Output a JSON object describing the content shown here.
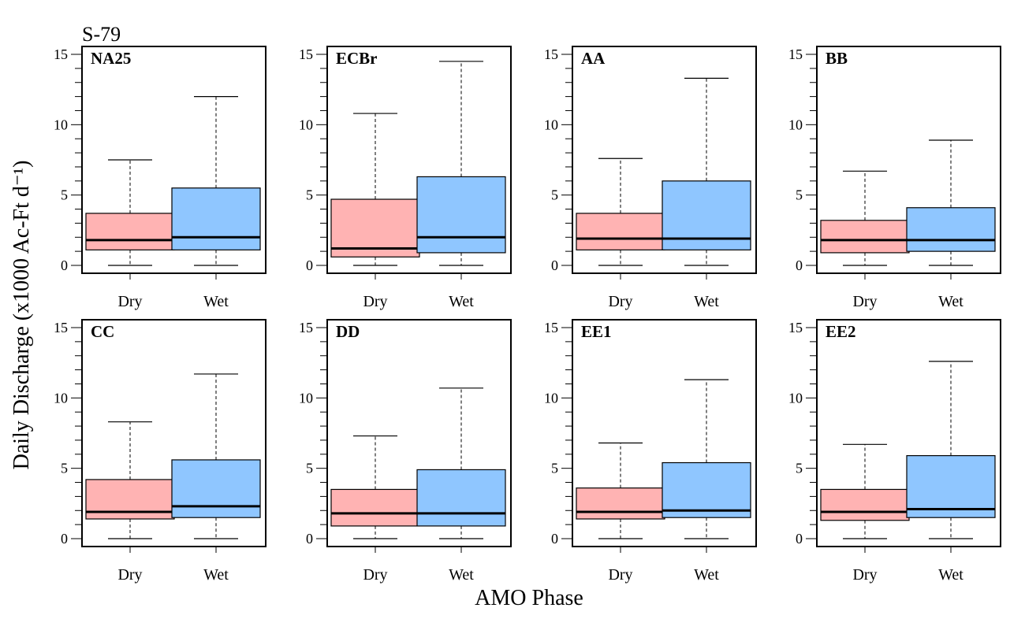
{
  "figure": {
    "site_label": "S-79",
    "ylabel": "Daily Discharge (x1000 Ac-Ft d⁻¹)",
    "xlabel": "AMO Phase",
    "colors": {
      "dry": "#ffb3b3",
      "wet": "#8fc6ff",
      "frame": "#000000"
    }
  },
  "chart_data": [
    {
      "type": "box",
      "title": "NA25",
      "categories": [
        "Dry",
        "Wet"
      ],
      "ylim": [
        0,
        15
      ],
      "yticks": [
        0,
        5,
        10,
        15
      ],
      "boxes": [
        {
          "name": "Dry",
          "whisker_low": 0,
          "q1": 1.1,
          "median": 1.8,
          "q3": 3.7,
          "whisker_high": 7.5
        },
        {
          "name": "Wet",
          "whisker_low": 0,
          "q1": 1.1,
          "median": 2.0,
          "q3": 5.5,
          "whisker_high": 12.0
        }
      ]
    },
    {
      "type": "box",
      "title": "ECBr",
      "categories": [
        "Dry",
        "Wet"
      ],
      "ylim": [
        0,
        15
      ],
      "yticks": [
        0,
        5,
        10,
        15
      ],
      "boxes": [
        {
          "name": "Dry",
          "whisker_low": 0,
          "q1": 0.6,
          "median": 1.2,
          "q3": 4.7,
          "whisker_high": 10.8
        },
        {
          "name": "Wet",
          "whisker_low": 0,
          "q1": 0.9,
          "median": 2.0,
          "q3": 6.3,
          "whisker_high": 14.5
        }
      ]
    },
    {
      "type": "box",
      "title": "AA",
      "categories": [
        "Dry",
        "Wet"
      ],
      "ylim": [
        0,
        15
      ],
      "yticks": [
        0,
        5,
        10,
        15
      ],
      "boxes": [
        {
          "name": "Dry",
          "whisker_low": 0,
          "q1": 1.1,
          "median": 1.9,
          "q3": 3.7,
          "whisker_high": 7.6
        },
        {
          "name": "Wet",
          "whisker_low": 0,
          "q1": 1.1,
          "median": 1.9,
          "q3": 6.0,
          "whisker_high": 13.3
        }
      ]
    },
    {
      "type": "box",
      "title": "BB",
      "categories": [
        "Dry",
        "Wet"
      ],
      "ylim": [
        0,
        15
      ],
      "yticks": [
        0,
        5,
        10,
        15
      ],
      "boxes": [
        {
          "name": "Dry",
          "whisker_low": 0,
          "q1": 0.9,
          "median": 1.8,
          "q3": 3.2,
          "whisker_high": 6.7
        },
        {
          "name": "Wet",
          "whisker_low": 0,
          "q1": 1.0,
          "median": 1.8,
          "q3": 4.1,
          "whisker_high": 8.9
        }
      ]
    },
    {
      "type": "box",
      "title": "CC",
      "categories": [
        "Dry",
        "Wet"
      ],
      "ylim": [
        0,
        15
      ],
      "yticks": [
        0,
        5,
        10,
        15
      ],
      "boxes": [
        {
          "name": "Dry",
          "whisker_low": 0,
          "q1": 1.4,
          "median": 1.9,
          "q3": 4.2,
          "whisker_high": 8.3
        },
        {
          "name": "Wet",
          "whisker_low": 0,
          "q1": 1.5,
          "median": 2.3,
          "q3": 5.6,
          "whisker_high": 11.7
        }
      ]
    },
    {
      "type": "box",
      "title": "DD",
      "categories": [
        "Dry",
        "Wet"
      ],
      "ylim": [
        0,
        15
      ],
      "yticks": [
        0,
        5,
        10,
        15
      ],
      "boxes": [
        {
          "name": "Dry",
          "whisker_low": 0,
          "q1": 0.9,
          "median": 1.8,
          "q3": 3.5,
          "whisker_high": 7.3
        },
        {
          "name": "Wet",
          "whisker_low": 0,
          "q1": 0.9,
          "median": 1.8,
          "q3": 4.9,
          "whisker_high": 10.7
        }
      ]
    },
    {
      "type": "box",
      "title": "EE1",
      "categories": [
        "Dry",
        "Wet"
      ],
      "ylim": [
        0,
        15
      ],
      "yticks": [
        0,
        5,
        10,
        15
      ],
      "boxes": [
        {
          "name": "Dry",
          "whisker_low": 0,
          "q1": 1.4,
          "median": 1.9,
          "q3": 3.6,
          "whisker_high": 6.8
        },
        {
          "name": "Wet",
          "whisker_low": 0,
          "q1": 1.5,
          "median": 2.0,
          "q3": 5.4,
          "whisker_high": 11.3
        }
      ]
    },
    {
      "type": "box",
      "title": "EE2",
      "categories": [
        "Dry",
        "Wet"
      ],
      "ylim": [
        0,
        15
      ],
      "yticks": [
        0,
        5,
        10,
        15
      ],
      "boxes": [
        {
          "name": "Dry",
          "whisker_low": 0,
          "q1": 1.3,
          "median": 1.9,
          "q3": 3.5,
          "whisker_high": 6.7
        },
        {
          "name": "Wet",
          "whisker_low": 0,
          "q1": 1.5,
          "median": 2.1,
          "q3": 5.9,
          "whisker_high": 12.6
        }
      ]
    }
  ]
}
